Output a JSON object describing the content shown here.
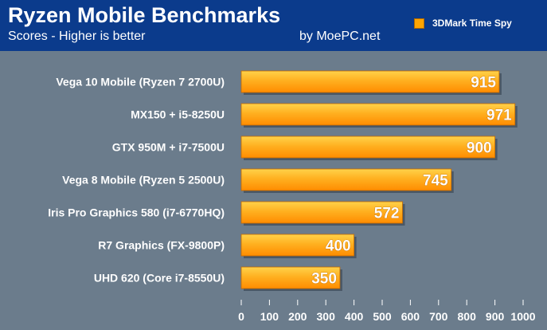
{
  "header": {
    "title": "Ryzen Mobile Benchmarks",
    "subtitle": "Scores - Higher is better",
    "credit": "by MoePC.net",
    "legend_label": "3DMark Time Spy"
  },
  "colors": {
    "header_bg": "#0b3b8c",
    "plot_bg": "#6b7c8c",
    "bar_light": "#ffd24a",
    "bar_dark": "#ff8c00",
    "text": "#ffffff"
  },
  "chart_data": {
    "type": "bar",
    "orientation": "horizontal",
    "title": "Ryzen Mobile Benchmarks",
    "subtitle": "Scores - Higher is better",
    "categories": [
      "Vega 10 Mobile (Ryzen 7 2700U)",
      "MX150 + i5-8250U",
      "GTX 950M + i7-7500U",
      "Vega 8 Mobile (Ryzen 5 2500U)",
      "Iris Pro Graphics 580 (i7-6770HQ)",
      "R7 Graphics (FX-9800P)",
      "UHD 620 (Core i7-8550U)"
    ],
    "series": [
      {
        "name": "3DMark Time Spy",
        "values": [
          915,
          971,
          900,
          745,
          572,
          400,
          350
        ]
      }
    ],
    "xlim": [
      0,
      1000
    ],
    "xticks": [
      "0",
      "100",
      "200",
      "300",
      "400",
      "500",
      "600",
      "700",
      "800",
      "900",
      "1000"
    ],
    "grid": false,
    "legend": "top-right",
    "data_labels": true
  }
}
